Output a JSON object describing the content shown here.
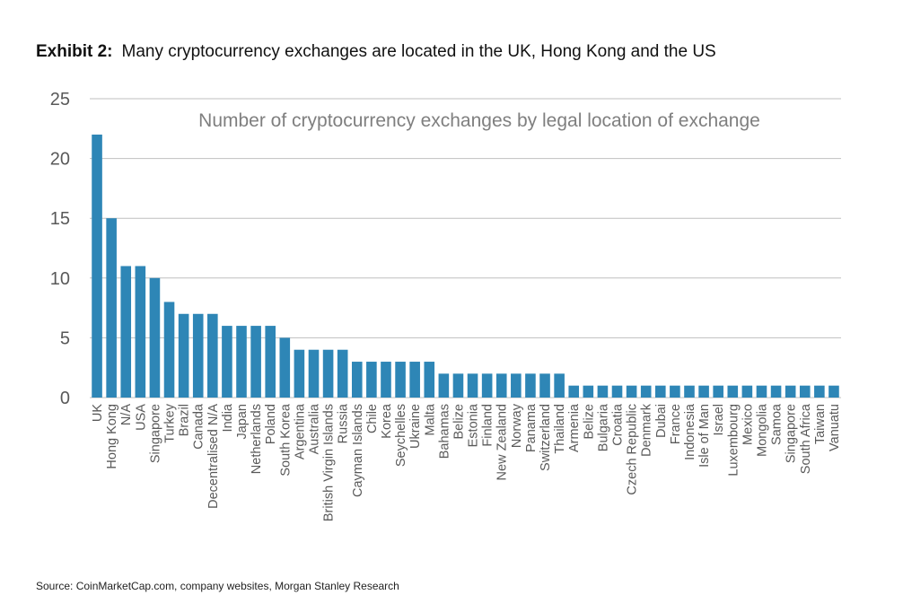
{
  "header": {
    "exhibit_label": "Exhibit 2:",
    "exhibit_title": "Many cryptocurrency exchanges are located in the UK, Hong Kong and the US"
  },
  "source": "Source: CoinMarketCap.com, company websites, Morgan Stanley Research",
  "chart_data": {
    "type": "bar",
    "title": "Number of cryptocurrency exchanges by legal location of exchange",
    "xlabel": "",
    "ylabel": "",
    "ylim": [
      0,
      25
    ],
    "yticks": [
      0,
      5,
      10,
      15,
      20,
      25
    ],
    "grid": true,
    "bar_color": "#2e86b6",
    "categories": [
      "UK",
      "Hong Kong",
      "N/A",
      "USA",
      "Singapore",
      "Turkey",
      "Brazil",
      "Canada",
      "Decentralised N/A",
      "India",
      "Japan",
      "Netherlands",
      "Poland",
      "South Korea",
      "Argentina",
      "Australia",
      "British Virgin Islands",
      "Russia",
      "Cayman Islands",
      "Chile",
      "Korea",
      "Seychelles",
      "Ukraine",
      "Malta",
      "Bahamas",
      "Belize",
      "Estonia",
      "Finland",
      "New Zealand",
      "Norway",
      "Panama",
      "Switzerland",
      "Thailand",
      "Armenia",
      "Belize",
      "Bulgaria",
      "Croatia",
      "Czech Republic",
      "Denmark",
      "Dubai",
      "France",
      "Indonesia",
      "Isle of Man",
      "Israel",
      "Luxembourg",
      "Mexico",
      "Mongolia",
      "Samoa",
      "Singapore",
      "South Africa",
      "Taiwan",
      "Vanuatu"
    ],
    "values": [
      22,
      15,
      11,
      11,
      10,
      8,
      7,
      7,
      7,
      6,
      6,
      6,
      6,
      5,
      4,
      4,
      4,
      4,
      3,
      3,
      3,
      3,
      3,
      3,
      2,
      2,
      2,
      2,
      2,
      2,
      2,
      2,
      2,
      1,
      1,
      1,
      1,
      1,
      1,
      1,
      1,
      1,
      1,
      1,
      1,
      1,
      1,
      1,
      1,
      1,
      1,
      1
    ]
  }
}
